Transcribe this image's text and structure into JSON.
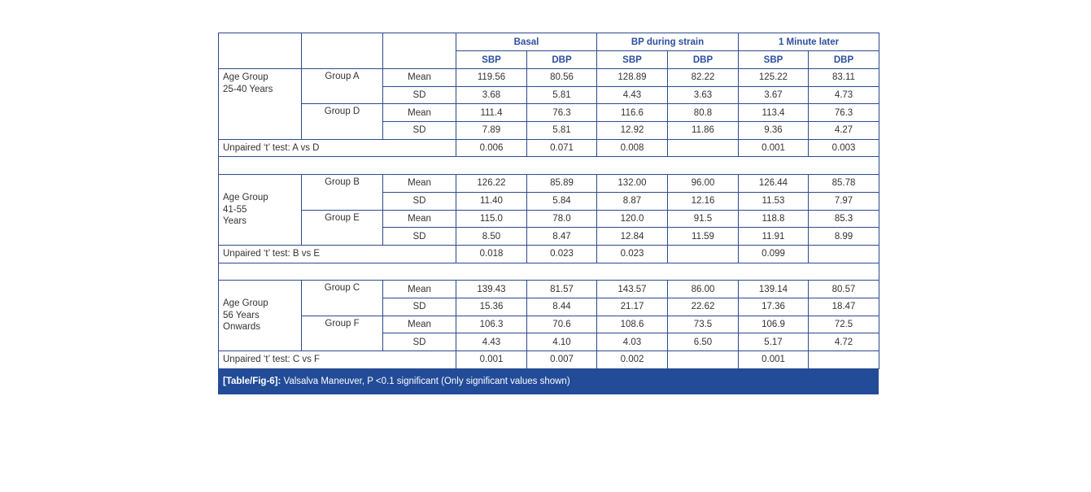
{
  "header": {
    "groups": [
      "Basal",
      "BP during strain",
      "1 Minute later"
    ],
    "subcolumns": [
      "SBP",
      "DBP",
      "SBP",
      "DBP",
      "SBP",
      "DBP"
    ]
  },
  "blocks": [
    {
      "age_group": [
        "Age Group",
        "25-40 Years"
      ],
      "groups": [
        {
          "name": "Group A",
          "rows": [
            {
              "stat": "Mean",
              "values": [
                "119.56",
                "80.56",
                "128.89",
                "82.22",
                "125.22",
                "83.11"
              ]
            },
            {
              "stat": "SD",
              "values": [
                "3.68",
                "5.81",
                "4.43",
                "3.63",
                "3.67",
                "4.73"
              ]
            }
          ]
        },
        {
          "name": "Group D",
          "rows": [
            {
              "stat": "Mean",
              "values": [
                "111.4",
                "76.3",
                "116.6",
                "80.8",
                "113.4",
                "76.3"
              ]
            },
            {
              "stat": "SD",
              "values": [
                "7.89",
                "5.81",
                "12.92",
                "11.86",
                "9.36",
                "4.27"
              ]
            }
          ]
        }
      ],
      "ttest": {
        "label": "Unpaired ‘t’ test: A vs D",
        "values": [
          "0.006",
          "0.071",
          "0.008",
          "",
          "0.001",
          "0.003"
        ]
      }
    },
    {
      "age_group": [
        "Age Group",
        "41-55",
        "Years"
      ],
      "groups": [
        {
          "name": "Group B",
          "rows": [
            {
              "stat": "Mean",
              "values": [
                "126.22",
                "85.89",
                "132.00",
                "96.00",
                "126.44",
                "85.78"
              ]
            },
            {
              "stat": "SD",
              "values": [
                "11.40",
                "5.84",
                "8.87",
                "12.16",
                "11.53",
                "7.97"
              ]
            }
          ]
        },
        {
          "name": "Group E",
          "rows": [
            {
              "stat": "Mean",
              "values": [
                "115.0",
                "78.0",
                "120.0",
                "91.5",
                "118.8",
                "85.3"
              ]
            },
            {
              "stat": "SD",
              "values": [
                "8.50",
                "8.47",
                "12.84",
                "11.59",
                "11.91",
                "8.99"
              ]
            }
          ]
        }
      ],
      "ttest": {
        "label": "Unpaired ‘t’ test: B vs E",
        "values": [
          "0.018",
          "0.023",
          "0.023",
          "",
          "0.099",
          ""
        ]
      }
    },
    {
      "age_group": [
        "Age Group",
        "56 Years",
        "Onwards"
      ],
      "groups": [
        {
          "name": "Group C",
          "rows": [
            {
              "stat": "Mean",
              "values": [
                "139.43",
                "81.57",
                "143.57",
                "86.00",
                "139.14",
                "80.57"
              ]
            },
            {
              "stat": "SD",
              "values": [
                "15.36",
                "8.44",
                "21.17",
                "22.62",
                "17.36",
                "18.47"
              ]
            }
          ]
        },
        {
          "name": "Group F",
          "rows": [
            {
              "stat": "Mean",
              "values": [
                "106.3",
                "70.6",
                "108.6",
                "73.5",
                "106.9",
                "72.5"
              ]
            },
            {
              "stat": "SD",
              "values": [
                "4.43",
                "4.10",
                "4.03",
                "6.50",
                "5.17",
                "4.72"
              ]
            }
          ]
        }
      ],
      "ttest": {
        "label": "Unpaired ‘t’ test: C vs F",
        "values": [
          "0.001",
          "0.007",
          "0.002",
          "",
          "0.001",
          ""
        ]
      }
    }
  ],
  "caption": {
    "label": "[Table/Fig-6]:",
    "text": " Valsalva Maneuver, P <0.1 significant (Only significant values shown)"
  },
  "colors": {
    "border": "#2b4a8c",
    "header_text": "#2c4f9e",
    "caption_bg": "#224c98"
  }
}
